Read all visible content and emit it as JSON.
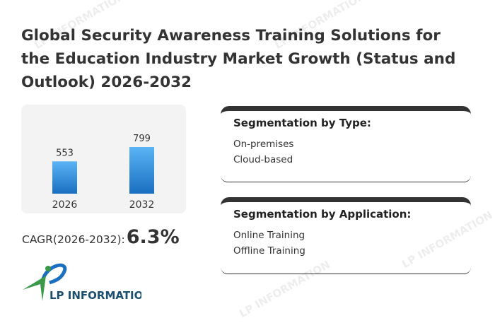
{
  "title": "Global Security Awareness Training Solutions for the Education Industry Market Growth (Status and Outlook) 2026-2032",
  "chart_data": {
    "type": "bar",
    "categories": [
      "2026",
      "2032"
    ],
    "values": [
      553,
      799
    ],
    "ylim": [
      0,
      799
    ],
    "grid": false,
    "colors": {
      "bar_top": "#5ab4f5",
      "bar_bottom": "#1a6fc0"
    }
  },
  "cagr": {
    "label": "CAGR(2026-2032):",
    "value": "6.3%"
  },
  "segments": [
    {
      "title": "Segmentation by Type:",
      "items": [
        "On-premises",
        "Cloud-based"
      ]
    },
    {
      "title": "Segmentation by Application:",
      "items": [
        "Online Training",
        "Offline Training"
      ]
    }
  ],
  "logo": {
    "text": "LP INFORMATION",
    "watermark": "LP INFORMATION"
  }
}
